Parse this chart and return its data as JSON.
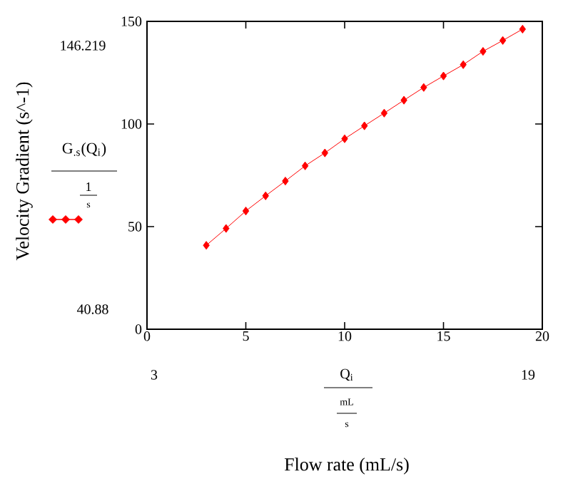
{
  "chart_data": {
    "type": "line",
    "ylabel": "Velocity Gradient (s^-1)",
    "x": [
      3,
      4,
      5,
      6,
      7,
      8,
      9,
      10,
      11,
      12,
      13,
      14,
      15,
      16,
      17,
      18,
      19
    ],
    "series": [
      {
        "name": "G$_{.s}$(Q$_{i}$)",
        "color": "#ff0000",
        "values": [
          40.88,
          49.1,
          57.6,
          65.0,
          72.2,
          79.6,
          85.9,
          92.8,
          99.1,
          105.3,
          111.6,
          117.8,
          123.4,
          128.9,
          135.4,
          140.7,
          146.219
        ]
      }
    ],
    "xlim": [
      0,
      20
    ],
    "xticks": [
      0,
      5,
      10,
      15,
      20
    ],
    "ylim": [
      0,
      150
    ],
    "yticks": [
      0,
      50,
      100,
      150
    ],
    "marker": "diamond",
    "line_style": "solid",
    "legend": "left",
    "annotations": [
      "146.219",
      "40.88",
      "3",
      "19",
      "1",
      "s",
      "Q$_{i}$",
      "mL",
      "s",
      "Flow rate (mL/s)"
    ]
  }
}
